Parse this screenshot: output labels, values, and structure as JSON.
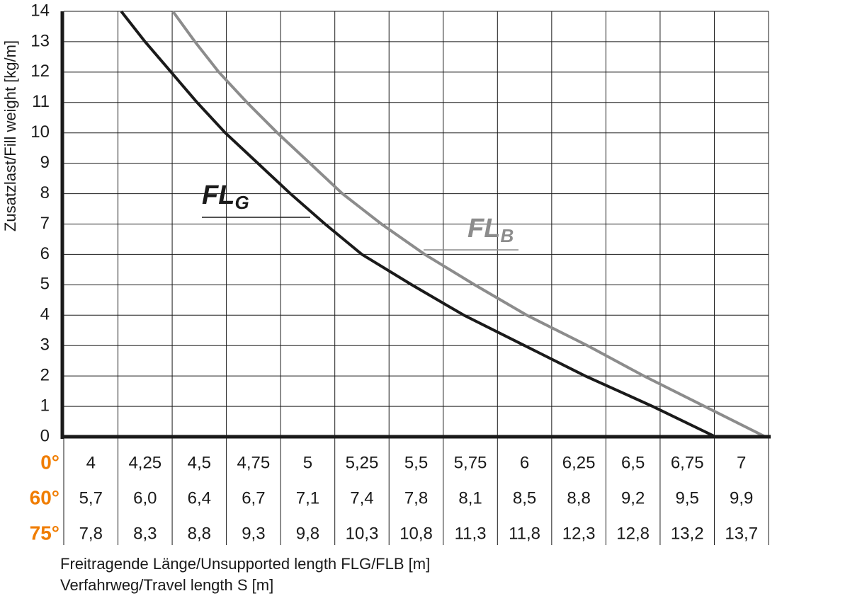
{
  "chart_data": {
    "type": "line",
    "y_label": "Zusatzlast/Fill weight [kg/m]",
    "x_label": "Freitragende Länge/Unsupported length FLG/FLB [m]",
    "x_label_2": "Verfahrweg/Travel length S [m]",
    "xlim": [
      3.875,
      7.125
    ],
    "xticks": [
      4,
      {
        "value": 4.25,
        "label": "4,25"
      },
      {
        "value": 4.5,
        "label": "4,5"
      },
      {
        "value": 4.75,
        "label": "4,75"
      },
      5,
      {
        "value": 5.25,
        "label": "5,25"
      },
      {
        "value": 5.5,
        "label": "5,5"
      },
      {
        "value": 5.75,
        "label": "5,75"
      },
      6,
      {
        "value": 6.25,
        "label": "6,25"
      },
      {
        "value": 6.5,
        "label": "6,5"
      },
      {
        "value": 6.75,
        "label": "6,75"
      },
      7
    ],
    "ylim": [
      0,
      14
    ],
    "yticks": [
      0,
      1,
      2,
      3,
      4,
      5,
      6,
      7,
      8,
      9,
      10,
      11,
      12,
      13,
      14
    ],
    "grid": true,
    "angle_labels": [
      "0°",
      "60°",
      "75°"
    ],
    "angle_color": "#f07d00",
    "length_rows": [
      [
        "5,7",
        "6,0",
        "6,4",
        "6,7",
        "7,1",
        "7,4",
        "7,8",
        "8,1",
        "8,5",
        "8,8",
        "9,2",
        "9,5",
        "9,9"
      ],
      [
        "7,8",
        "8,3",
        "8,8",
        "9,3",
        "9,8",
        "10,3",
        "10,8",
        "11,3",
        "11,8",
        "12,3",
        "12,8",
        "13,2",
        "13,7"
      ]
    ],
    "series": [
      {
        "name": "FLG",
        "color": "#1a1a1a",
        "x": [
          4.14,
          4.25,
          4.37,
          4.49,
          4.62,
          4.77,
          4.92,
          5.08,
          5.25,
          5.48,
          5.72,
          6.0,
          6.28,
          6.59,
          6.88
        ],
        "values": [
          14,
          13,
          12,
          11,
          10,
          9,
          8,
          7,
          6,
          5,
          4,
          3,
          2,
          1,
          0
        ]
      },
      {
        "name": "FLB",
        "color": "#8c8c8c",
        "x": [
          4.378,
          4.48,
          4.59,
          4.72,
          4.86,
          5.01,
          5.16,
          5.34,
          5.54,
          5.77,
          6.01,
          6.29,
          6.55,
          6.83,
          7.11
        ],
        "values": [
          14,
          13,
          12,
          11,
          10,
          9,
          8,
          7,
          6,
          5,
          4,
          3,
          2,
          1,
          0
        ]
      }
    ]
  }
}
